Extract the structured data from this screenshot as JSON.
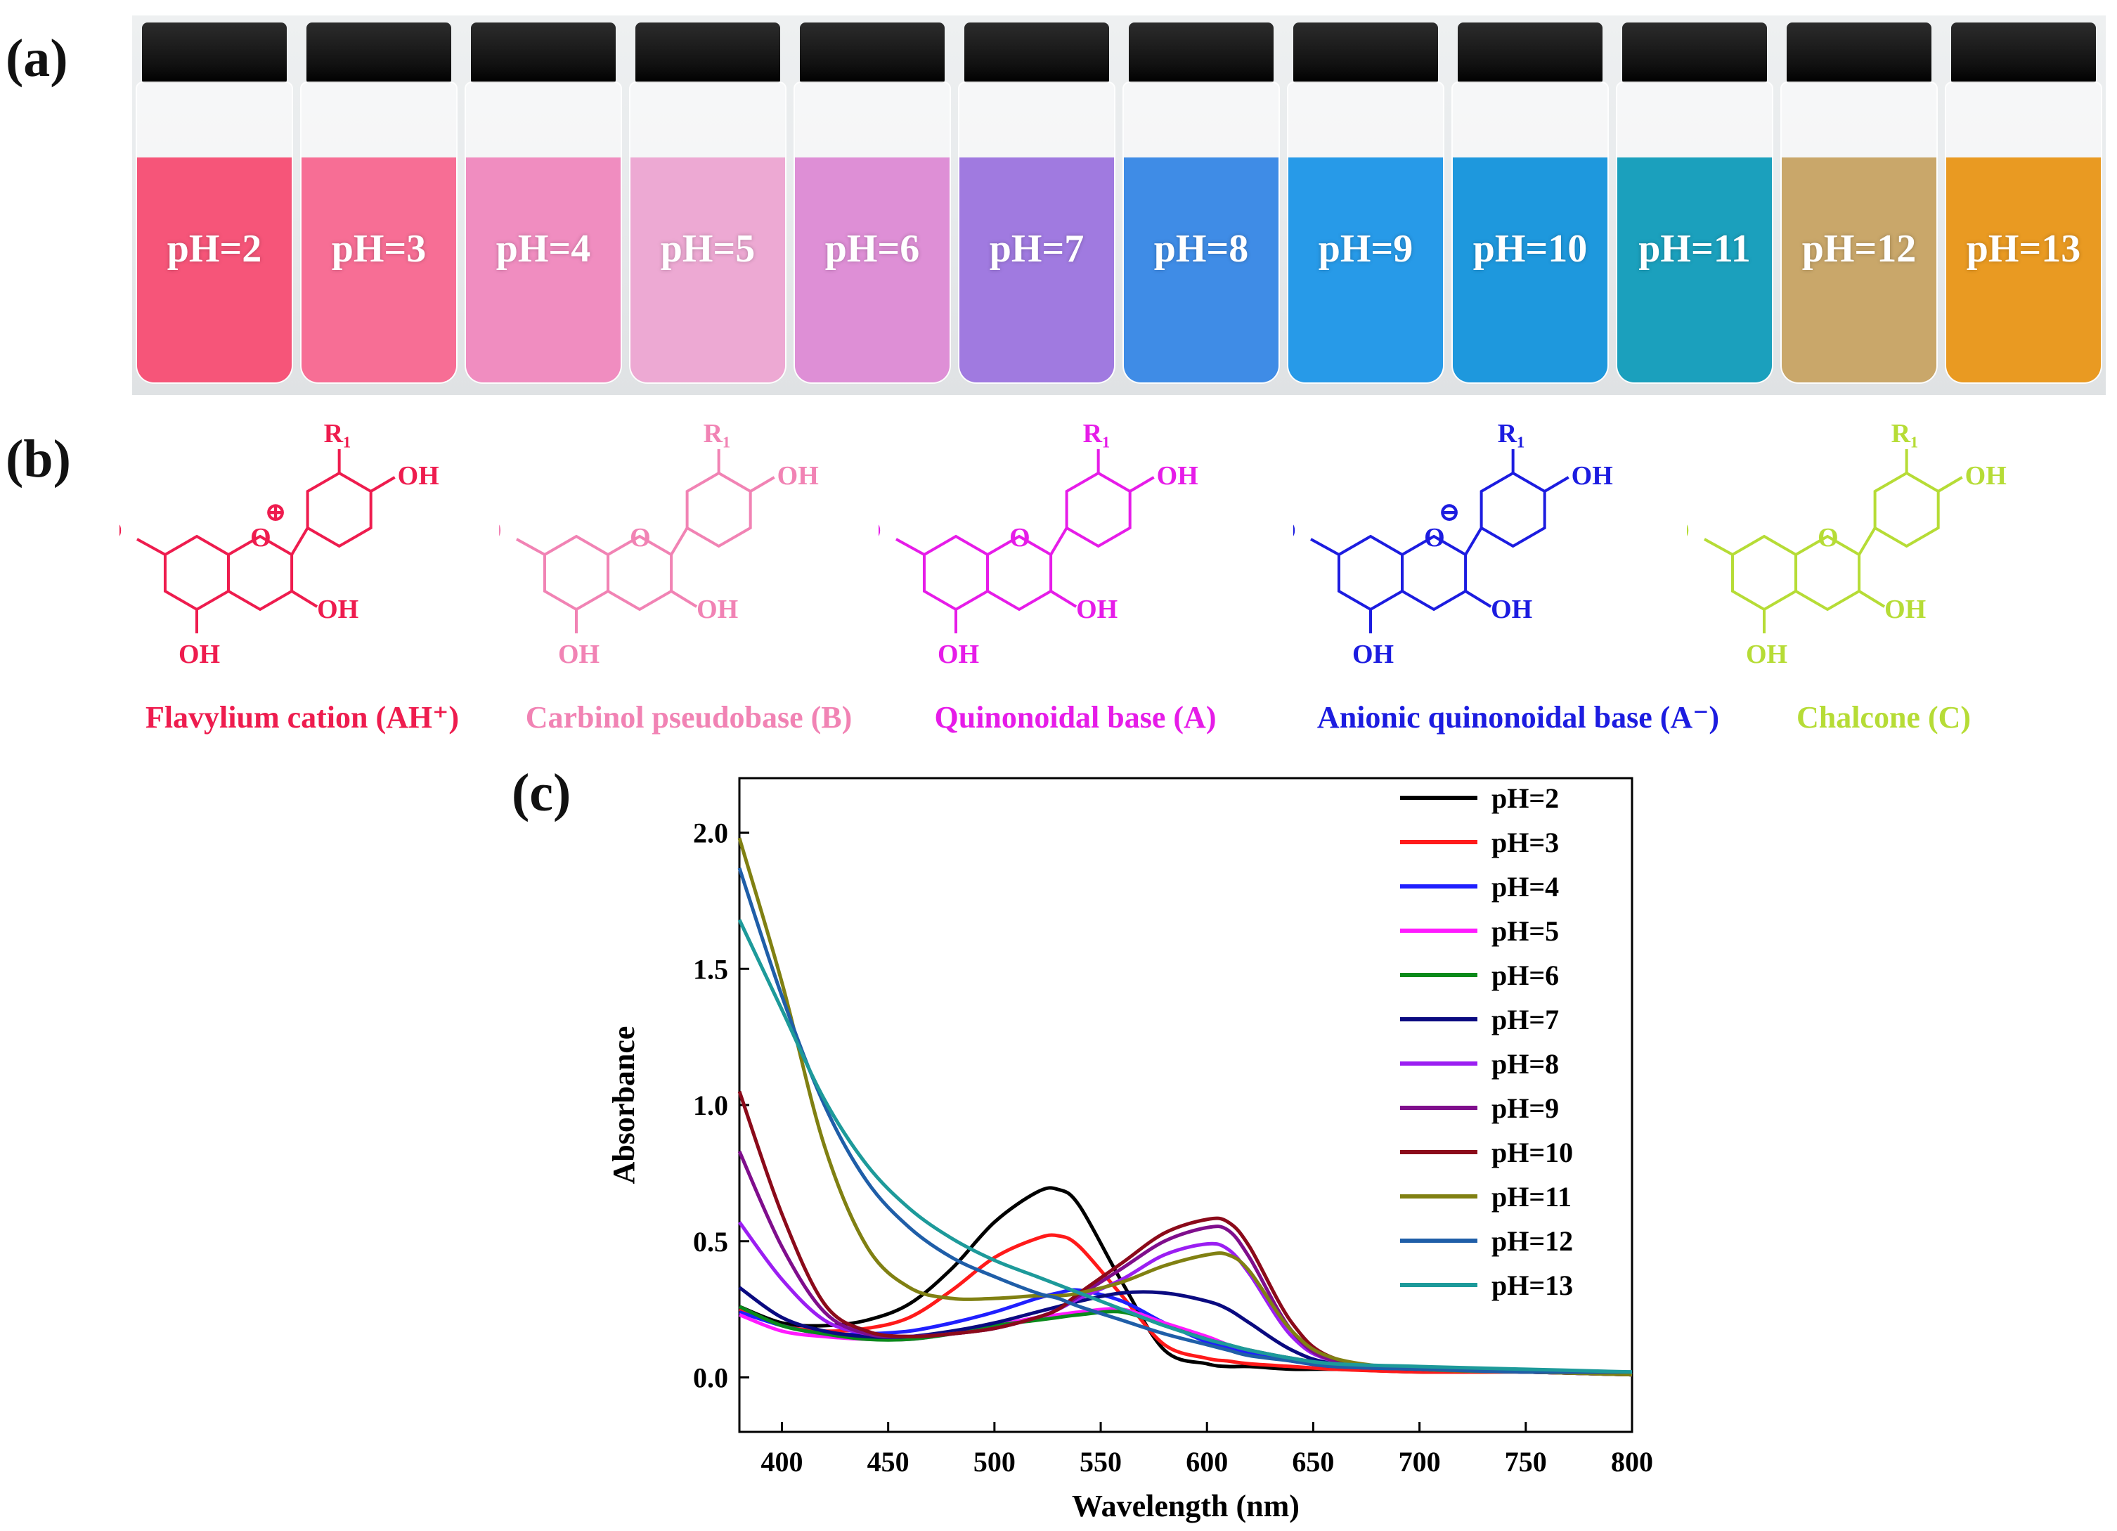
{
  "panels": {
    "a": "(a)",
    "b": "(b)",
    "c": "(c)"
  },
  "vials": [
    {
      "label": "pH=2",
      "color": "#f65579"
    },
    {
      "label": "pH=3",
      "color": "#f76e95"
    },
    {
      "label": "pH=4",
      "color": "#f08dc0"
    },
    {
      "label": "pH=5",
      "color": "#eda9d3"
    },
    {
      "label": "pH=6",
      "color": "#de8fd6"
    },
    {
      "label": "pH=7",
      "color": "#a07ae0"
    },
    {
      "label": "pH=8",
      "color": "#3f8ce6"
    },
    {
      "label": "pH=9",
      "color": "#279ae8"
    },
    {
      "label": "pH=10",
      "color": "#1e98dd"
    },
    {
      "label": "pH=11",
      "color": "#1ba0bd"
    },
    {
      "label": "pH=12",
      "color": "#c9a76a"
    },
    {
      "label": "pH=13",
      "color": "#e99a22"
    }
  ],
  "structures": [
    {
      "name": "Flavylium cation (AH⁺)",
      "color": "#ee1c4e",
      "charge": "⊕",
      "r1": "R₁",
      "oh": "OH",
      "ho": "HO",
      "o": "O"
    },
    {
      "name": "Carbinol pseudobase (B)",
      "color": "#f183b4",
      "r1": "R₁",
      "oh": "OH",
      "ho": "HO",
      "o": "O"
    },
    {
      "name": "Quinonoidal base (A)",
      "color": "#e61ce8",
      "r1": "R₁",
      "oh": "OH",
      "ho": "HO",
      "o": "O"
    },
    {
      "name": "Anionic quinonoidal base (A⁻)",
      "color": "#1c1ce0",
      "charge": "⊖",
      "r1": "R₁",
      "oh": "OH",
      "ho": "HO",
      "o": "O"
    },
    {
      "name": "Chalcone (C)",
      "color": "#b6dc36",
      "r1": "R₁",
      "oh": "OH",
      "ho": "HO",
      "o": "O"
    }
  ],
  "chart_data": {
    "type": "line",
    "title": "",
    "xlabel": "Wavelength (nm)",
    "ylabel": "Absorbance",
    "xlim": [
      380,
      800
    ],
    "ylim": [
      -0.2,
      2.2
    ],
    "xticks": [
      400,
      450,
      500,
      550,
      600,
      650,
      700,
      750,
      800
    ],
    "yticks": [
      0.0,
      0.5,
      1.0,
      1.5,
      2.0
    ],
    "legend_position": "top-right",
    "x": [
      380,
      400,
      420,
      440,
      460,
      480,
      500,
      520,
      530,
      540,
      560,
      580,
      600,
      610,
      620,
      640,
      660,
      700,
      750,
      800
    ],
    "series": [
      {
        "name": "pH=2",
        "color": "#000000",
        "values": [
          0.26,
          0.2,
          0.19,
          0.21,
          0.27,
          0.4,
          0.57,
          0.68,
          0.69,
          0.63,
          0.35,
          0.1,
          0.05,
          0.04,
          0.04,
          0.03,
          0.03,
          0.02,
          0.02,
          0.01
        ]
      },
      {
        "name": "pH=3",
        "color": "#ff1a1a",
        "values": [
          0.25,
          0.19,
          0.17,
          0.18,
          0.22,
          0.32,
          0.44,
          0.51,
          0.52,
          0.48,
          0.3,
          0.12,
          0.07,
          0.06,
          0.05,
          0.04,
          0.03,
          0.02,
          0.02,
          0.01
        ]
      },
      {
        "name": "pH=4",
        "color": "#1f1fff",
        "values": [
          0.24,
          0.19,
          0.16,
          0.16,
          0.17,
          0.2,
          0.24,
          0.29,
          0.31,
          0.32,
          0.28,
          0.2,
          0.13,
          0.11,
          0.09,
          0.06,
          0.04,
          0.03,
          0.02,
          0.01
        ]
      },
      {
        "name": "pH=5",
        "color": "#ff1aff",
        "values": [
          0.23,
          0.17,
          0.15,
          0.14,
          0.14,
          0.16,
          0.19,
          0.22,
          0.23,
          0.24,
          0.25,
          0.2,
          0.15,
          0.12,
          0.1,
          0.07,
          0.05,
          0.03,
          0.02,
          0.01
        ]
      },
      {
        "name": "pH=6",
        "color": "#0a8a1a",
        "values": [
          0.26,
          0.19,
          0.16,
          0.14,
          0.14,
          0.16,
          0.19,
          0.21,
          0.22,
          0.23,
          0.24,
          0.19,
          0.14,
          0.12,
          0.1,
          0.07,
          0.05,
          0.03,
          0.02,
          0.01
        ]
      },
      {
        "name": "pH=7",
        "color": "#0a0a80",
        "values": [
          0.33,
          0.22,
          0.17,
          0.15,
          0.15,
          0.17,
          0.2,
          0.24,
          0.26,
          0.28,
          0.31,
          0.31,
          0.28,
          0.25,
          0.2,
          0.1,
          0.05,
          0.03,
          0.02,
          0.01
        ]
      },
      {
        "name": "pH=8",
        "color": "#9b1ef2",
        "values": [
          0.57,
          0.36,
          0.21,
          0.16,
          0.15,
          0.16,
          0.18,
          0.22,
          0.25,
          0.29,
          0.36,
          0.45,
          0.49,
          0.47,
          0.38,
          0.15,
          0.06,
          0.03,
          0.02,
          0.01
        ]
      },
      {
        "name": "pH=9",
        "color": "#7f0e8c",
        "values": [
          0.83,
          0.48,
          0.24,
          0.16,
          0.15,
          0.16,
          0.18,
          0.22,
          0.25,
          0.3,
          0.4,
          0.5,
          0.55,
          0.54,
          0.44,
          0.17,
          0.06,
          0.03,
          0.02,
          0.01
        ]
      },
      {
        "name": "pH=10",
        "color": "#8b0a1a",
        "values": [
          1.05,
          0.6,
          0.27,
          0.17,
          0.15,
          0.16,
          0.18,
          0.22,
          0.25,
          0.31,
          0.42,
          0.53,
          0.58,
          0.57,
          0.48,
          0.2,
          0.07,
          0.03,
          0.02,
          0.01
        ]
      },
      {
        "name": "pH=11",
        "color": "#808012",
        "values": [
          1.98,
          1.45,
          0.85,
          0.48,
          0.33,
          0.29,
          0.29,
          0.3,
          0.3,
          0.31,
          0.35,
          0.41,
          0.45,
          0.45,
          0.39,
          0.17,
          0.07,
          0.03,
          0.02,
          0.01
        ]
      },
      {
        "name": "pH=12",
        "color": "#1f5ea8",
        "values": [
          1.87,
          1.4,
          1.0,
          0.72,
          0.55,
          0.44,
          0.37,
          0.31,
          0.29,
          0.26,
          0.21,
          0.16,
          0.12,
          0.1,
          0.08,
          0.06,
          0.04,
          0.03,
          0.02,
          0.02
        ]
      },
      {
        "name": "pH=13",
        "color": "#1d9a9a",
        "values": [
          1.68,
          1.35,
          1.02,
          0.78,
          0.62,
          0.51,
          0.43,
          0.37,
          0.34,
          0.31,
          0.25,
          0.19,
          0.14,
          0.12,
          0.1,
          0.07,
          0.05,
          0.04,
          0.03,
          0.02
        ]
      }
    ]
  }
}
